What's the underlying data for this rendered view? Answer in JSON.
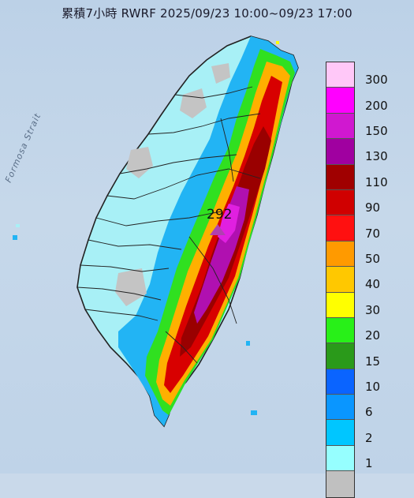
{
  "title": "累積7小時 RWRF 2025/09/23 10:00~09/23 17:00",
  "sea_label": "Formosa Strait",
  "peak_value": "292",
  "legend": [
    {
      "label": "300",
      "color": "#ffc8f8"
    },
    {
      "label": "200",
      "color": "#ff00ff"
    },
    {
      "label": "150",
      "color": "#d018d0"
    },
    {
      "label": "130",
      "color": "#a000a0"
    },
    {
      "label": "110",
      "color": "#a00000"
    },
    {
      "label": "90",
      "color": "#d00000"
    },
    {
      "label": "70",
      "color": "#ff1010"
    },
    {
      "label": "50",
      "color": "#ff9a00"
    },
    {
      "label": "40",
      "color": "#ffc800"
    },
    {
      "label": "30",
      "color": "#ffff00"
    },
    {
      "label": "20",
      "color": "#28f018"
    },
    {
      "label": "15",
      "color": "#2a9a1a"
    },
    {
      "label": "10",
      "color": "#0a64ff"
    },
    {
      "label": "6",
      "color": "#0a96ff"
    },
    {
      "label": "2",
      "color": "#00c6ff"
    },
    {
      "label": "1",
      "color": "#96ffff"
    },
    {
      "label": "",
      "color": "#c0c0c0"
    }
  ]
}
